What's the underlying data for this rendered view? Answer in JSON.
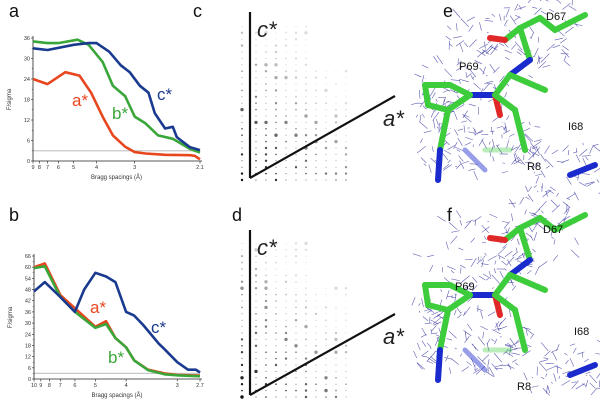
{
  "panels": {
    "a": "a",
    "b": "b",
    "c": "c",
    "d": "d",
    "e": "e",
    "f": "f"
  },
  "colors": {
    "a_star": "#e8461e",
    "b_star": "#3aa63a",
    "c_star": "#1a3a8f",
    "threshold": "#c8c8c8",
    "mesh": "#2a2a9a",
    "carbon": "#3ccc3c",
    "nitrogen": "#1a2acc",
    "oxygen": "#e02828"
  },
  "chart_data": [
    {
      "panel": "a",
      "type": "line",
      "title": "",
      "xlabel": "Bragg spacings (Å)",
      "ylabel": "F/sigma",
      "x_scale": "1/d (resolution)",
      "xlim": [
        9,
        2.1
      ],
      "ylim": [
        0,
        36
      ],
      "yticks": [
        0,
        6,
        12,
        18,
        24,
        30,
        36
      ],
      "xticks": [
        "9",
        "8",
        "7",
        "6",
        "5",
        "4",
        "3",
        "2.1"
      ],
      "xtick_values": [
        9,
        8,
        7,
        6,
        5,
        4,
        3,
        2.1
      ],
      "threshold": 3,
      "series": [
        {
          "name": "a*",
          "color_key": "a_star",
          "x": [
            9,
            7,
            5.5,
            4.7,
            4.2,
            3.8,
            3.5,
            3.2,
            3.0,
            2.8,
            2.5,
            2.2,
            2.15,
            2.1
          ],
          "y": [
            24,
            22.5,
            26,
            25,
            20,
            13,
            7.5,
            4.2,
            2.6,
            2.2,
            1.8,
            1.7,
            1.5,
            0.5
          ]
        },
        {
          "name": "b*",
          "color_key": "b_star",
          "x": [
            9,
            7,
            6,
            4.8,
            4.3,
            3.8,
            3.5,
            3.2,
            3.0,
            2.8,
            2.6,
            2.4,
            2.2,
            2.1
          ],
          "y": [
            35,
            34.5,
            34.5,
            35.5,
            34,
            29,
            22,
            19,
            13,
            11,
            7.5,
            6.5,
            3.5,
            2.5
          ],
          "label_anchor": [
            3.4,
            16
          ]
        },
        {
          "name": "c*",
          "color_key": "c_star",
          "x": [
            9,
            7,
            5,
            4.3,
            4.0,
            3.6,
            3.3,
            3.1,
            2.9,
            2.75,
            2.65,
            2.5,
            2.4,
            2.35,
            2.3,
            2.2,
            2.1
          ],
          "y": [
            33,
            32.5,
            34,
            34.5,
            34.5,
            32,
            28,
            26,
            22,
            20,
            14,
            9.5,
            10,
            7,
            6,
            4,
            3.2
          ]
        }
      ],
      "annotations": [
        {
          "text": "a*",
          "color_key": "a_star"
        },
        {
          "text": "b*",
          "color_key": "b_star"
        },
        {
          "text": "c*",
          "color_key": "c_star"
        }
      ]
    },
    {
      "panel": "b",
      "type": "line",
      "title": "",
      "xlabel": "Bragg spacings (Å)",
      "ylabel": "F/sigma",
      "x_scale": "1/d (resolution)",
      "xlim": [
        10,
        2.7
      ],
      "ylim": [
        0,
        66
      ],
      "yticks": [
        0,
        6,
        12,
        18,
        24,
        30,
        36,
        42,
        48,
        54,
        60,
        66
      ],
      "xticks": [
        "10",
        "9",
        "8",
        "7",
        "6",
        "5",
        "4",
        "3",
        "2.7"
      ],
      "xtick_values": [
        10,
        9,
        8,
        7,
        6,
        5,
        4,
        3,
        2.7
      ],
      "threshold": 3,
      "series": [
        {
          "name": "a*",
          "color_key": "a_star",
          "x": [
            10,
            8.5,
            7,
            6,
            5,
            4.6,
            4.3,
            4.0,
            3.8,
            3.5,
            3.2,
            3.0,
            2.85,
            2.7
          ],
          "y": [
            60,
            62,
            45,
            38,
            28,
            31,
            22,
            17,
            10,
            5,
            3,
            2.2,
            2,
            1.8
          ]
        },
        {
          "name": "b*",
          "color_key": "b_star",
          "x": [
            10,
            8.5,
            7,
            6,
            5,
            4.6,
            4.3,
            4.0,
            3.8,
            3.5,
            3.2,
            3.0,
            2.85,
            2.7
          ],
          "y": [
            59.5,
            60.5,
            44,
            36,
            27.5,
            29.5,
            22,
            17,
            10,
            4.8,
            2.5,
            2,
            1.7,
            1.5
          ]
        },
        {
          "name": "c*",
          "color_key": "c_star",
          "x": [
            10,
            8.5,
            7,
            6,
            5.5,
            5,
            4.6,
            4.3,
            4.0,
            3.8,
            3.6,
            3.3,
            3.2,
            3.0,
            2.85,
            2.75,
            2.7
          ],
          "y": [
            47,
            52,
            44,
            36,
            48,
            57,
            55,
            52,
            36,
            34,
            29,
            19,
            16,
            9,
            5,
            5,
            3.5
          ]
        }
      ],
      "annotations": [
        {
          "text": "a*",
          "color_key": "a_star"
        },
        {
          "text": "b*",
          "color_key": "b_star"
        },
        {
          "text": "c*",
          "color_key": "c_star"
        }
      ]
    }
  ],
  "diffraction": {
    "axis_labels": {
      "vertical": "c*",
      "diagonal": "a*"
    }
  },
  "density": {
    "residues": [
      "D67",
      "P69",
      "I68",
      "R8"
    ]
  }
}
